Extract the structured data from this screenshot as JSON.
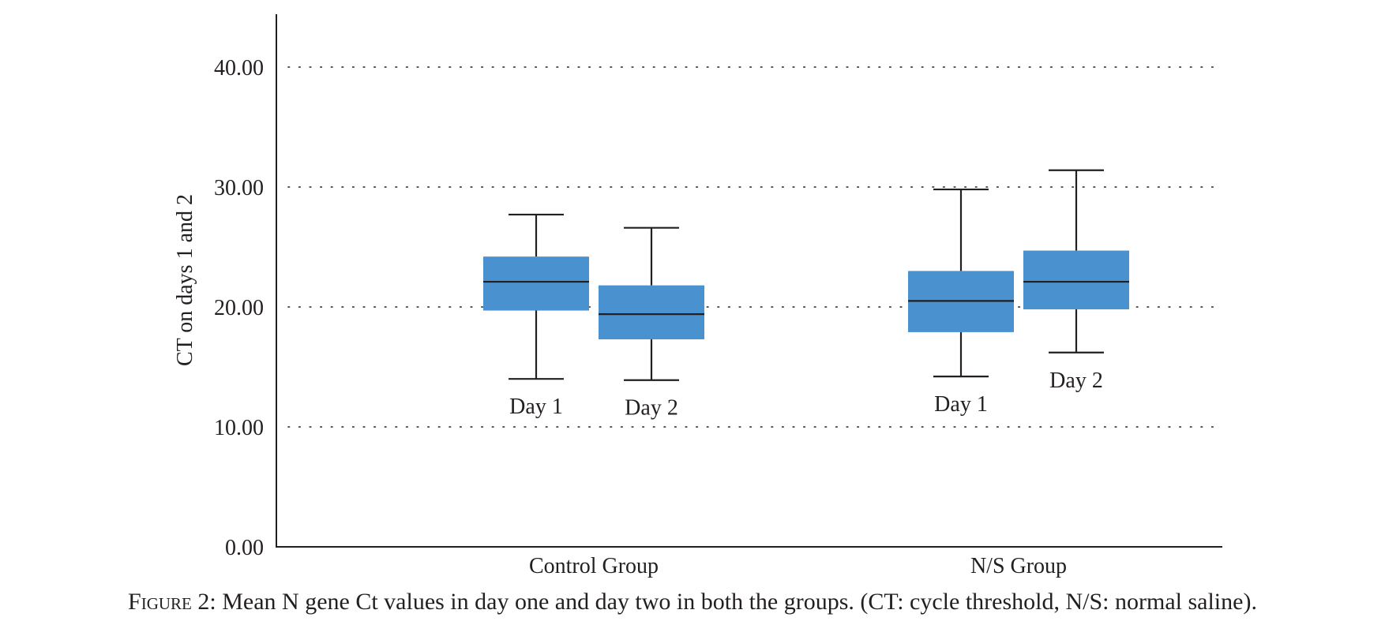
{
  "figure": {
    "label": "Figure 2:",
    "caption": "Mean N gene Ct values in day one and day two in both the groups. (CT: cycle threshold, N/S: normal saline)."
  },
  "chart_data": {
    "type": "boxplot",
    "ylabel": "CT on days 1 and 2",
    "xlabel": "",
    "ylim": [
      0,
      44
    ],
    "yticks": [
      "0.00",
      "10.00",
      "20.00",
      "30.00",
      "40.00"
    ],
    "ytick_values": [
      0,
      10,
      20,
      30,
      40
    ],
    "grid": "horizontal dotted",
    "box_color": "#4a92cf",
    "groups": [
      {
        "name": "Control Group",
        "boxes": [
          {
            "label": "Day 1",
            "min": 14.0,
            "q1": 19.7,
            "median": 22.1,
            "q3": 24.2,
            "max": 27.7
          },
          {
            "label": "Day 2",
            "min": 13.9,
            "q1": 17.3,
            "median": 19.4,
            "q3": 21.8,
            "max": 26.6
          }
        ]
      },
      {
        "name": "N/S Group",
        "boxes": [
          {
            "label": "Day 1",
            "min": 14.2,
            "q1": 17.9,
            "median": 20.5,
            "q3": 23.0,
            "max": 29.8
          },
          {
            "label": "Day 2",
            "min": 16.2,
            "q1": 19.8,
            "median": 22.1,
            "q3": 24.7,
            "max": 31.4
          }
        ]
      }
    ]
  }
}
